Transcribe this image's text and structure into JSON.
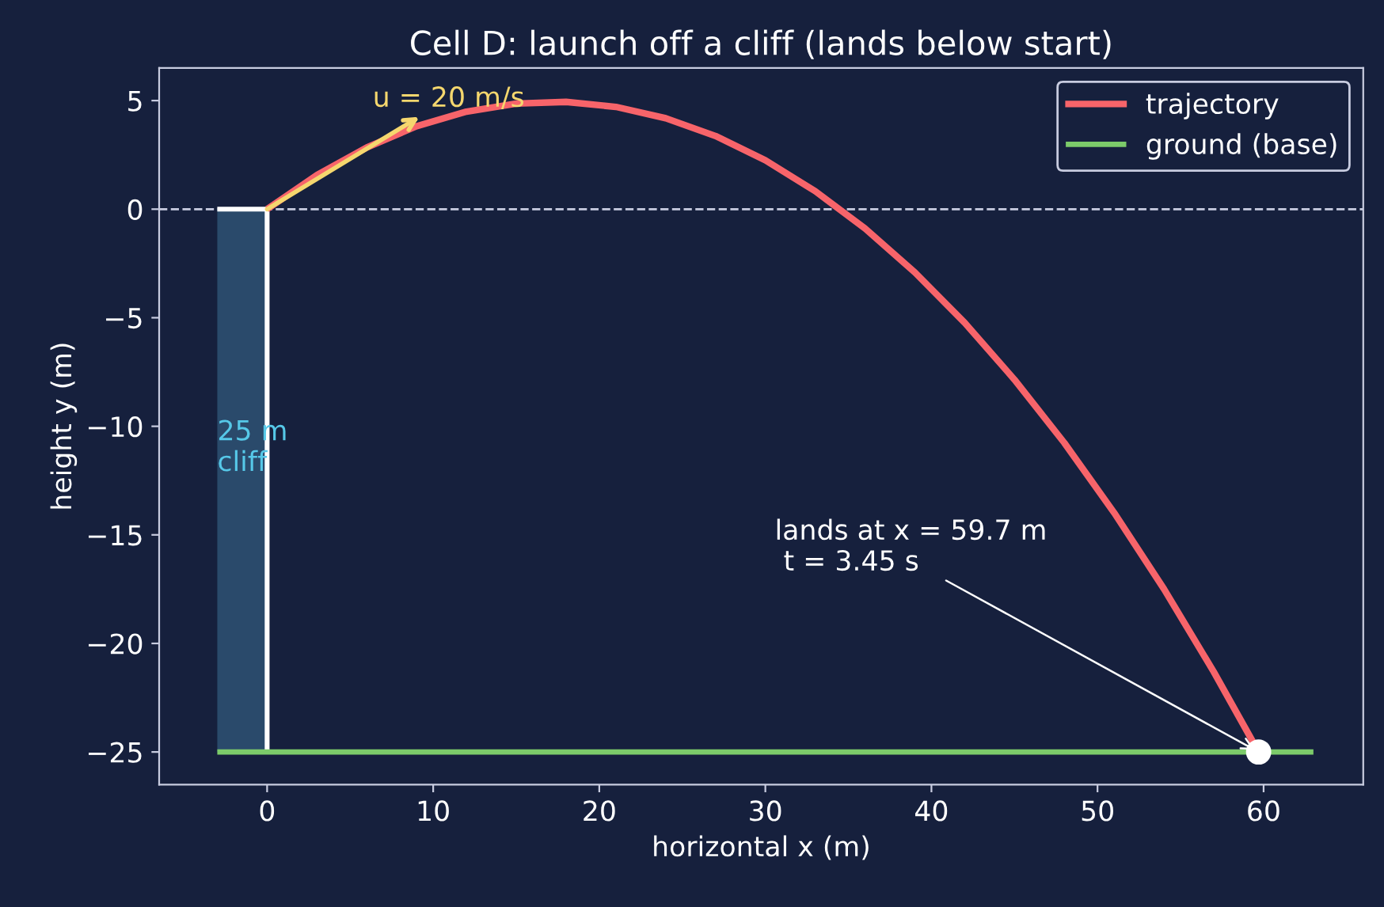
{
  "chart_data": {
    "type": "line",
    "title": "Cell D: launch off a cliff (lands below start)",
    "xlabel": "horizontal x (m)",
    "ylabel": "height y (m)",
    "series": [
      {
        "type": "area",
        "color": "#2a4a6b",
        "x": [
          -3,
          0
        ],
        "values": [
          -25,
          -25
        ]
      },
      {
        "type": "line",
        "color": "#ffffff",
        "x": [
          -3,
          0
        ],
        "values": [
          0,
          0
        ]
      },
      {
        "type": "line",
        "color": "#ffffff",
        "x": [
          0,
          0
        ],
        "values": [
          0,
          -25
        ]
      },
      {
        "name": "trajectory",
        "color": "#f7646a",
        "x": [
          0,
          3,
          6,
          9,
          12,
          15,
          18,
          21,
          24,
          27,
          30,
          33,
          36,
          39,
          42,
          45,
          48,
          51,
          54,
          57,
          59.7
        ],
        "values": [
          0,
          1.57,
          2.84,
          3.82,
          4.49,
          4.86,
          4.94,
          4.71,
          4.19,
          3.37,
          2.25,
          0.83,
          -0.89,
          -2.91,
          -5.23,
          -7.85,
          -10.76,
          -13.98,
          -17.49,
          -21.31,
          -25
        ]
      },
      {
        "name": "ground (base)",
        "type": "line",
        "color": "#7ccb6a",
        "x": [
          -3,
          63
        ],
        "values": [
          -25,
          -25
        ]
      },
      {
        "type": "scatter",
        "color": "#ffffff",
        "x": [
          59.7
        ],
        "values": [
          -25
        ]
      }
    ],
    "ref_lines": [
      {
        "axis": "y",
        "value": 0,
        "color": "#c8cce0",
        "line_style": "dashed"
      }
    ],
    "annotations": [
      {
        "text": "u = 20 m/s",
        "x": 0,
        "y": 0
      },
      {
        "text": "25 m\ncliff",
        "x": -3,
        "y": -11
      },
      {
        "text": "lands at x = 59.7 m\n t = 3.45 s",
        "x": 59.7,
        "y": -25
      }
    ],
    "xlim": [
      -6.5,
      66
    ],
    "ylim": [
      -26.5,
      6.5
    ],
    "xticks": [
      0,
      10,
      20,
      30,
      40,
      50,
      60
    ],
    "yticks": [
      -25,
      -20,
      -15,
      -10,
      -5,
      0,
      5
    ],
    "grid": false,
    "legend": "top right"
  }
}
